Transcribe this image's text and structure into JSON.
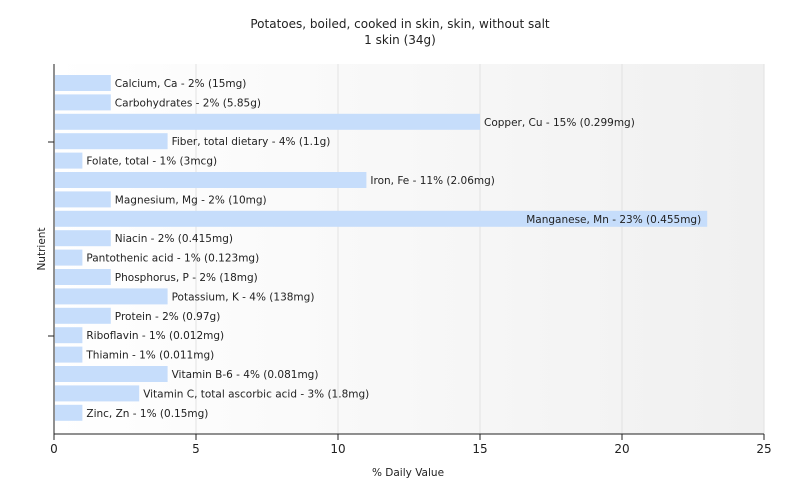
{
  "chart_data": {
    "type": "bar",
    "orientation": "horizontal",
    "title": "Potatoes, boiled, cooked in skin, skin, without salt",
    "subtitle": "1 skin (34g)",
    "xlabel": "% Daily Value",
    "ylabel": "Nutrient",
    "xlim": [
      0,
      25
    ],
    "xticks": [
      0,
      5,
      10,
      15,
      20,
      25
    ],
    "grid": true,
    "bar_color": "#c6ddfb",
    "categories": [
      "Calcium, Ca",
      "Carbohydrates",
      "Copper, Cu",
      "Fiber, total dietary",
      "Folate, total",
      "Iron, Fe",
      "Magnesium, Mg",
      "Manganese, Mn",
      "Niacin",
      "Pantothenic acid",
      "Phosphorus, P",
      "Potassium, K",
      "Protein",
      "Riboflavin",
      "Thiamin",
      "Vitamin B-6",
      "Vitamin C, total ascorbic acid",
      "Zinc, Zn"
    ],
    "values": [
      2,
      2,
      15,
      4,
      1,
      11,
      2,
      23,
      2,
      1,
      2,
      4,
      2,
      1,
      1,
      4,
      3,
      1
    ],
    "labels": [
      "Calcium, Ca - 2% (15mg)",
      "Carbohydrates - 2% (5.85g)",
      "Copper, Cu - 15% (0.299mg)",
      "Fiber, total dietary - 4% (1.1g)",
      "Folate, total - 1% (3mcg)",
      "Iron, Fe - 11% (2.06mg)",
      "Magnesium, Mg - 2% (10mg)",
      "Manganese, Mn - 23% (0.455mg)",
      "Niacin - 2% (0.415mg)",
      "Pantothenic acid - 1% (0.123mg)",
      "Phosphorus, P - 2% (18mg)",
      "Potassium, K - 4% (138mg)",
      "Protein - 2% (0.97g)",
      "Riboflavin - 1% (0.012mg)",
      "Thiamin - 1% (0.011mg)",
      "Vitamin B-6 - 4% (0.081mg)",
      "Vitamin C, total ascorbic acid - 3% (1.8mg)",
      "Zinc, Zn - 1% (0.15mg)"
    ]
  }
}
